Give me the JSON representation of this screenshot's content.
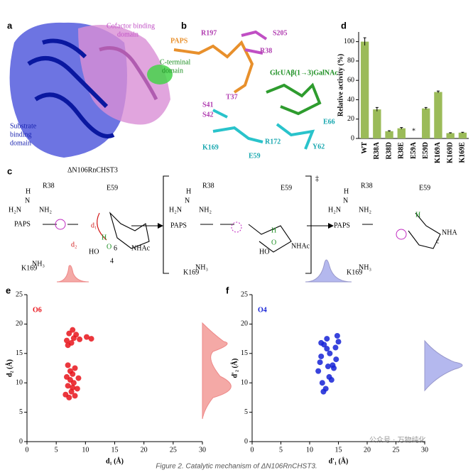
{
  "panel_labels": [
    "a",
    "b",
    "c",
    "d",
    "e",
    "f"
  ],
  "panel_a": {
    "cofactor": "Cofactor binding",
    "cofactor2": "domain",
    "cterm": "C-terminal",
    "cterm2": "domain",
    "substrate": "Substrate",
    "substrate2": "binding",
    "substrate3": "domain",
    "protein": "ΔN106RnCHST3"
  },
  "panel_b": {
    "labels": [
      "PAPS",
      "R197",
      "S205",
      "R38",
      "GlcUAβ(1→3)GalNAc",
      "T37",
      "S41",
      "S42",
      "K169",
      "E59",
      "R172",
      "E66",
      "Y62"
    ]
  },
  "panel_c": {
    "reactant": [
      "R38",
      "H",
      "N",
      "H₂N",
      "NH₂",
      "E59",
      "PAPS",
      "d₁",
      "d₂",
      "H",
      "O",
      "6",
      "4",
      "NHAc",
      "HO",
      "K169",
      "NH₃"
    ],
    "transition": [
      "R38",
      "H",
      "N",
      "H₂N",
      "NH₂",
      "E59",
      "PAPS",
      "H",
      "O",
      "NHAc",
      "HO",
      "K169",
      "NH₃",
      "‡"
    ],
    "product": [
      "R38",
      "H",
      "N",
      "H₂N",
      "NH₂",
      "PAPS",
      "K169",
      "NH₃",
      "E59",
      "H",
      "NHA",
      "c"
    ]
  },
  "chart_data": [
    {
      "type": "bar",
      "y_label": "Relative activity (%)",
      "categories": [
        "WT",
        "R38A",
        "R38D",
        "R38E",
        "E59A",
        "E59D",
        "K169A",
        "K169D",
        "K169E"
      ],
      "values": [
        100,
        30,
        7.5,
        10.5,
        0,
        31,
        48,
        5.5,
        6
      ],
      "errors": [
        4,
        2,
        0.5,
        0.8,
        0,
        1,
        1,
        0.4,
        0.4
      ],
      "annotation": "*",
      "color": "#9bbb59",
      "ylim": [
        0,
        110
      ],
      "yticks": [
        0,
        20,
        40,
        60,
        80,
        100
      ]
    },
    {
      "type": "scatter",
      "x_label": "d₁ (Å)",
      "y_label": "d₂ (Å)",
      "series": [
        {
          "name": "O6",
          "color": "#e8141b",
          "x": [
            6.8,
            7.2,
            7.6,
            8.0,
            8.4,
            9.0,
            10.2,
            11.0,
            7.0,
            7.8,
            6.6,
            7.0,
            7.4,
            7.8,
            8.2,
            8.6,
            7.2,
            7.6,
            8.0,
            6.8,
            7.4,
            8.2,
            7.0,
            7.8,
            8.8
          ],
          "values": [
            17.2,
            18.4,
            16.8,
            17.6,
            18.2,
            17.4,
            17.8,
            17.5,
            16.4,
            19.0,
            8.0,
            9.5,
            10.5,
            11.5,
            12.5,
            9.0,
            7.5,
            8.5,
            10.0,
            11.0,
            12.0,
            7.8,
            13.0,
            9.2,
            10.8
          ]
        }
      ],
      "xlim": [
        0,
        30
      ],
      "ylim": [
        0,
        25
      ],
      "xticks": [
        0,
        5,
        10,
        15,
        20,
        25,
        30
      ],
      "yticks": [
        0,
        5,
        10,
        15,
        20,
        25
      ]
    },
    {
      "type": "scatter",
      "x_label": "d'₁ (Å)",
      "y_label": "d'₂ (Å)",
      "series": [
        {
          "name": "O4",
          "color": "#1522d6",
          "x": [
            11.5,
            12.0,
            12.5,
            13.0,
            13.5,
            14.0,
            14.5,
            15.0,
            12.2,
            12.8,
            13.4,
            14.2,
            11.8,
            13.0,
            14.6,
            12.4,
            13.8,
            12.0,
            14.8,
            13.2
          ],
          "values": [
            12.0,
            14.5,
            16.5,
            17.5,
            15.0,
            13.0,
            16.0,
            17.0,
            10.0,
            9.0,
            11.0,
            12.5,
            13.5,
            15.8,
            14.0,
            8.5,
            10.5,
            16.8,
            18.0,
            12.8
          ]
        }
      ],
      "xlim": [
        0,
        30
      ],
      "ylim": [
        0,
        25
      ],
      "xticks": [
        0,
        5,
        10,
        15,
        20,
        25,
        30
      ],
      "yticks": [
        0,
        5,
        10,
        15,
        20,
        25
      ]
    }
  ],
  "watermark": "公众号 · 万物纯化",
  "caption": "Figure 2. Catalytic mechanism of ΔN106RnCHST3."
}
